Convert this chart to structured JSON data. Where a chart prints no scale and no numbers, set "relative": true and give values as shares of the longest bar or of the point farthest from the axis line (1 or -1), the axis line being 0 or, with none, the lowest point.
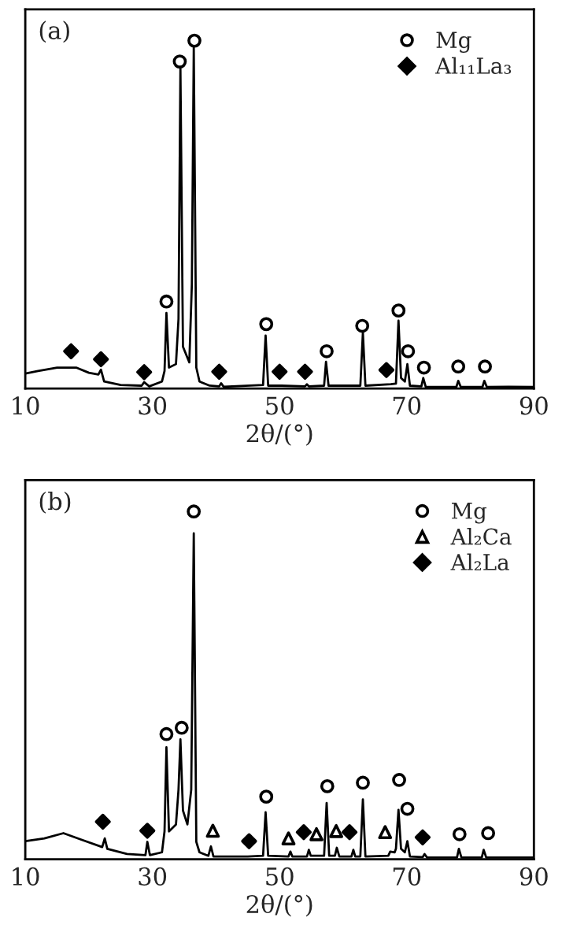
{
  "chart_data": [
    {
      "type": "line",
      "relative": true,
      "xlabel": "2θ/(°)",
      "xlim": [
        10,
        90
      ],
      "xticks": [
        10,
        30,
        50,
        70,
        90
      ],
      "tick_labels": "x",
      "legend": "top right",
      "grid": false,
      "annotations": [
        "(a)"
      ],
      "series": [
        {
          "color": "#000000",
          "marker": "none",
          "line_style": "solid",
          "x": [
            10,
            12,
            15,
            18,
            20,
            21.5,
            21.9,
            22.4,
            25,
            28.3,
            28.7,
            29.5,
            31.5,
            31.9,
            32.2,
            32.6,
            33.7,
            34.1,
            34.4,
            34.8,
            35.8,
            36.2,
            36.5,
            36.9,
            37.4,
            39,
            40.5,
            40.8,
            41.2,
            47.4,
            47.8,
            48.2,
            50.3,
            54,
            54.3,
            54.6,
            57.0,
            57.3,
            57.7,
            62.7,
            63.1,
            63.5,
            67.5,
            68.3,
            68.7,
            69.1,
            69.7,
            70.1,
            70.5,
            72.3,
            72.6,
            73.0,
            77.8,
            78.1,
            78.5,
            81.9,
            82.2,
            82.6,
            86,
            90
          ],
          "values": [
            0.043,
            0.05,
            0.06,
            0.06,
            0.045,
            0.04,
            0.054,
            0.02,
            0.01,
            0.008,
            0.018,
            0.006,
            0.02,
            0.05,
            0.217,
            0.06,
            0.07,
            0.2,
            0.92,
            0.12,
            0.075,
            0.3,
            0.98,
            0.06,
            0.02,
            0.008,
            0.006,
            0.015,
            0.005,
            0.01,
            0.152,
            0.008,
            0.008,
            0.006,
            0.012,
            0.006,
            0.008,
            0.077,
            0.008,
            0.008,
            0.16,
            0.008,
            0.012,
            0.014,
            0.195,
            0.03,
            0.02,
            0.07,
            0.008,
            0.006,
            0.03,
            0.004,
            0.004,
            0.022,
            0.004,
            0.004,
            0.022,
            0.004,
            0.005,
            0.004
          ]
        },
        {
          "type": "scatter",
          "name": "Mg",
          "color": "#000000",
          "marker": "circle",
          "x": [
            32.2,
            34.3,
            36.6,
            47.9,
            57.4,
            63.0,
            68.7,
            70.2,
            72.7,
            78.1,
            82.3
          ],
          "values": [
            0.25,
            0.94,
            1.0,
            0.185,
            0.107,
            0.18,
            0.224,
            0.107,
            0.06,
            0.063,
            0.063
          ]
        },
        {
          "type": "scatter",
          "name": "Al₁₁La₃",
          "color": "#000000",
          "marker": "diamond",
          "x": [
            17.2,
            21.9,
            28.7,
            40.5,
            50.0,
            54.0,
            66.8
          ],
          "values": [
            0.107,
            0.084,
            0.047,
            0.048,
            0.048,
            0.048,
            0.053
          ]
        }
      ]
    },
    {
      "type": "line",
      "relative": true,
      "xlabel": "2θ/(°)",
      "xlim": [
        10,
        90
      ],
      "xticks": [
        10,
        30,
        50,
        70,
        90
      ],
      "tick_labels": "x",
      "legend": "top right",
      "grid": false,
      "annotations": [
        "(b)"
      ],
      "series": [
        {
          "color": "#000000",
          "marker": "none",
          "line_style": "solid",
          "x": [
            10,
            13,
            16,
            19,
            22.1,
            22.5,
            22.9,
            26,
            28.9,
            29.2,
            29.6,
            31.5,
            31.9,
            32.2,
            32.6,
            33.7,
            34.1,
            34.4,
            34.8,
            35.5,
            36.1,
            36.5,
            36.9,
            37.4,
            38.8,
            39.2,
            39.6,
            45,
            47.4,
            47.8,
            48.2,
            51.4,
            51.7,
            52.0,
            54.3,
            54.6,
            54.9,
            57.0,
            57.4,
            57.8,
            58.7,
            59,
            59.4,
            61.3,
            61.6,
            61.9,
            62.7,
            63.1,
            63.5,
            67.1,
            67.4,
            68.1,
            68.3,
            68.7,
            69.1,
            69.7,
            70.1,
            70.5,
            72.5,
            72.8,
            73.2,
            77.9,
            78.2,
            78.6,
            81.8,
            82.1,
            82.5,
            90
          ],
          "values": [
            0.052,
            0.06,
            0.075,
            0.055,
            0.035,
            0.06,
            0.03,
            0.015,
            0.012,
            0.05,
            0.012,
            0.02,
            0.08,
            0.322,
            0.08,
            0.1,
            0.2,
            0.345,
            0.14,
            0.1,
            0.2,
            0.937,
            0.05,
            0.02,
            0.01,
            0.037,
            0.008,
            0.008,
            0.01,
            0.135,
            0.01,
            0.008,
            0.022,
            0.008,
            0.008,
            0.027,
            0.01,
            0.01,
            0.162,
            0.01,
            0.01,
            0.033,
            0.008,
            0.008,
            0.027,
            0.008,
            0.008,
            0.172,
            0.008,
            0.01,
            0.022,
            0.02,
            0.03,
            0.142,
            0.03,
            0.02,
            0.052,
            0.008,
            0.006,
            0.015,
            0.005,
            0.005,
            0.03,
            0.005,
            0.005,
            0.027,
            0.005,
            0.005
          ]
        },
        {
          "type": "scatter",
          "name": "Mg",
          "color": "#000000",
          "marker": "circle",
          "x": [
            32.2,
            34.6,
            36.5,
            47.9,
            57.5,
            63.1,
            68.8,
            70.1,
            78.3,
            82.8
          ],
          "values": [
            0.36,
            0.378,
            1.0,
            0.18,
            0.21,
            0.22,
            0.228,
            0.145,
            0.072,
            0.075
          ]
        },
        {
          "type": "scatter",
          "name": "Al₂Ca",
          "color": "#000000",
          "marker": "triangle",
          "x": [
            39.5,
            51.4,
            55.8,
            58.9,
            66.6
          ],
          "values": [
            0.082,
            0.06,
            0.072,
            0.081,
            0.078
          ]
        },
        {
          "type": "scatter",
          "name": "Al₂La",
          "color": "#000000",
          "marker": "diamond",
          "x": [
            22.2,
            29.2,
            45.2,
            53.8,
            61.0,
            72.5
          ],
          "values": [
            0.108,
            0.082,
            0.052,
            0.078,
            0.078,
            0.063
          ]
        }
      ]
    }
  ]
}
